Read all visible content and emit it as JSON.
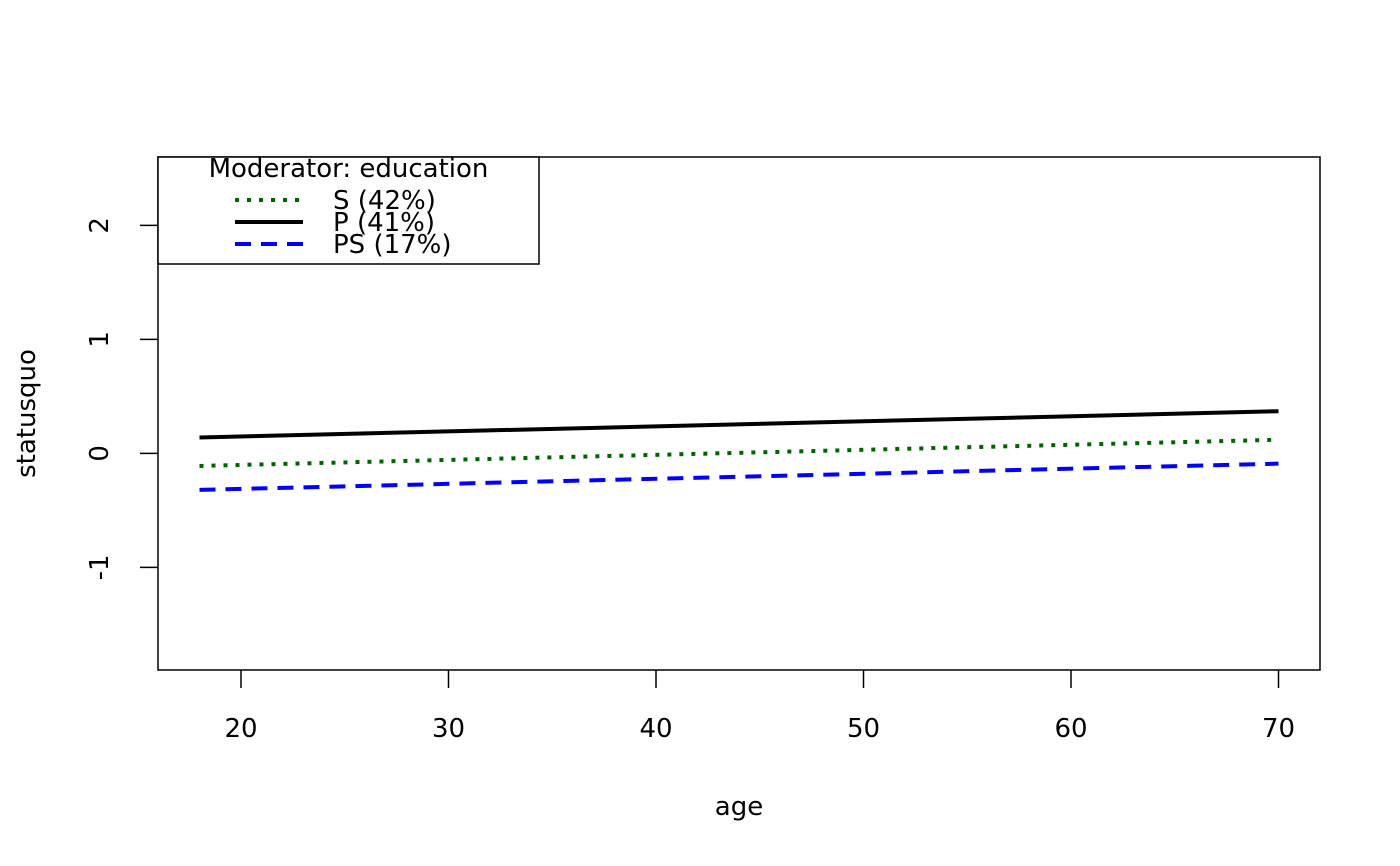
{
  "chart_data": {
    "type": "line",
    "xlabel": "age",
    "ylabel": "statusquo",
    "xlim": [
      16,
      72
    ],
    "ylim": [
      -1.9,
      2.6
    ],
    "xticks": [
      20,
      30,
      40,
      50,
      60,
      70
    ],
    "yticks": [
      -1,
      0,
      1,
      2
    ],
    "grid": false,
    "legend": {
      "title": "Moderator: education",
      "placement": "top-left"
    },
    "series": [
      {
        "name": "S (42%)",
        "color": "#006400",
        "dash": "dotted",
        "x": [
          18,
          70
        ],
        "y": [
          -0.11,
          0.12
        ]
      },
      {
        "name": "P (41%)",
        "color": "#000000",
        "dash": "solid",
        "x": [
          18,
          70
        ],
        "y": [
          0.14,
          0.37
        ]
      },
      {
        "name": "PS (17%)",
        "color": "#0000FF",
        "dash": "dashed",
        "x": [
          18,
          70
        ],
        "y": [
          -0.32,
          -0.09
        ]
      }
    ]
  }
}
